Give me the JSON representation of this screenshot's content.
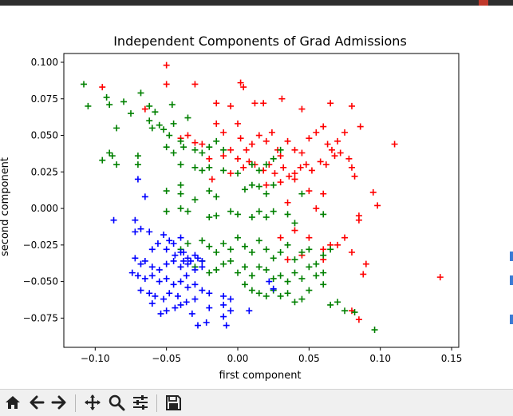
{
  "app": {
    "toolbar": {
      "items": [
        {
          "name": "home-button",
          "icon": "home-icon"
        },
        {
          "name": "back-button",
          "icon": "arrow-left-icon"
        },
        {
          "name": "forward-button",
          "icon": "arrow-right-icon"
        },
        {
          "name": "pan-button",
          "icon": "move-icon"
        },
        {
          "name": "zoom-button",
          "icon": "magnifier-icon"
        },
        {
          "name": "subplots-button",
          "icon": "sliders-icon"
        },
        {
          "name": "save-button",
          "icon": "floppy-disk-icon"
        }
      ]
    }
  },
  "chart_data": {
    "type": "scatter",
    "title": "Independent Components of Grad Admissions",
    "xlabel": "first component",
    "ylabel": "second component",
    "xlim": [
      -0.122,
      0.155
    ],
    "ylim": [
      -0.095,
      0.106
    ],
    "xticks": [
      -0.1,
      -0.05,
      0.0,
      0.05,
      0.1,
      0.15
    ],
    "xtick_labels": [
      "−0.10",
      "−0.05",
      "0.00",
      "0.05",
      "0.10",
      "0.15"
    ],
    "yticks": [
      -0.075,
      -0.05,
      -0.025,
      0.0,
      0.025,
      0.05,
      0.075,
      0.1
    ],
    "ytick_labels": [
      "−0.075",
      "−0.050",
      "−0.025",
      "0.000",
      "0.025",
      "0.050",
      "0.075",
      "0.100"
    ],
    "grid": false,
    "marker": "+",
    "series": [
      {
        "color": "#ff0000",
        "points": [
          [
            -0.05,
            0.098
          ],
          [
            -0.095,
            0.083
          ],
          [
            -0.05,
            0.085
          ],
          [
            -0.03,
            0.085
          ],
          [
            0.002,
            0.086
          ],
          [
            0.004,
            0.083
          ],
          [
            -0.065,
            0.068
          ],
          [
            -0.015,
            0.072
          ],
          [
            -0.005,
            0.07
          ],
          [
            0.012,
            0.072
          ],
          [
            0.018,
            0.072
          ],
          [
            0.031,
            0.075
          ],
          [
            0.045,
            0.068
          ],
          [
            0.065,
            0.072
          ],
          [
            0.08,
            0.07
          ],
          [
            0.086,
            0.056
          ],
          [
            0.11,
            0.044
          ],
          [
            0.095,
            0.011
          ],
          [
            0.098,
            0.002
          ],
          [
            0.085,
            -0.005
          ],
          [
            0.085,
            -0.008
          ],
          [
            0.075,
            -0.02
          ],
          [
            0.065,
            -0.025
          ],
          [
            0.06,
            -0.028
          ],
          [
            0.05,
            -0.02
          ],
          [
            0.04,
            -0.015
          ],
          [
            0.03,
            -0.02
          ],
          [
            0.045,
            -0.032
          ],
          [
            0.035,
            -0.035
          ],
          [
            0.06,
            -0.035
          ],
          [
            0.07,
            -0.025
          ],
          [
            0.08,
            -0.03
          ],
          [
            0.09,
            -0.038
          ],
          [
            0.088,
            -0.045
          ],
          [
            0.142,
            -0.047
          ],
          [
            0.08,
            -0.07
          ],
          [
            0.085,
            -0.076
          ],
          [
            -0.035,
            0.05
          ],
          [
            -0.03,
            0.045
          ],
          [
            -0.015,
            0.058
          ],
          [
            -0.01,
            0.052
          ],
          [
            0.0,
            0.058
          ],
          [
            0.002,
            0.048
          ],
          [
            0.006,
            0.04
          ],
          [
            0.01,
            0.044
          ],
          [
            0.015,
            0.05
          ],
          [
            0.02,
            0.046
          ],
          [
            0.024,
            0.052
          ],
          [
            0.028,
            0.04
          ],
          [
            0.03,
            0.036
          ],
          [
            0.035,
            0.046
          ],
          [
            0.04,
            0.04
          ],
          [
            0.045,
            0.038
          ],
          [
            0.05,
            0.048
          ],
          [
            0.055,
            0.052
          ],
          [
            0.06,
            0.056
          ],
          [
            0.063,
            0.044
          ],
          [
            0.066,
            0.04
          ],
          [
            0.07,
            0.046
          ],
          [
            0.072,
            0.038
          ],
          [
            0.075,
            0.052
          ],
          [
            0.078,
            0.034
          ],
          [
            0.08,
            0.028
          ],
          [
            0.082,
            0.022
          ],
          [
            -0.01,
            0.036
          ],
          [
            -0.005,
            0.04
          ],
          [
            0.0,
            0.034
          ],
          [
            0.004,
            0.028
          ],
          [
            0.008,
            0.032
          ],
          [
            0.012,
            0.03
          ],
          [
            0.018,
            0.026
          ],
          [
            0.022,
            0.03
          ],
          [
            0.026,
            0.024
          ],
          [
            0.032,
            0.028
          ],
          [
            0.036,
            0.022
          ],
          [
            0.04,
            0.024
          ],
          [
            0.044,
            0.028
          ],
          [
            0.048,
            0.03
          ],
          [
            0.052,
            0.026
          ],
          [
            0.058,
            0.032
          ],
          [
            0.062,
            0.03
          ],
          [
            0.068,
            0.036
          ],
          [
            -0.02,
            0.034
          ],
          [
            -0.025,
            0.044
          ],
          [
            -0.04,
            0.048
          ],
          [
            -0.018,
            0.02
          ],
          [
            -0.005,
            0.024
          ],
          [
            0.02,
            0.016
          ],
          [
            0.03,
            0.018
          ],
          [
            0.04,
            0.02
          ],
          [
            0.05,
            0.012
          ],
          [
            0.06,
            0.01
          ],
          [
            0.035,
            0.004
          ],
          [
            0.055,
            0.0
          ]
        ]
      },
      {
        "color": "#008000",
        "points": [
          [
            -0.108,
            0.085
          ],
          [
            -0.105,
            0.07
          ],
          [
            -0.092,
            0.076
          ],
          [
            -0.09,
            0.071
          ],
          [
            -0.08,
            0.073
          ],
          [
            -0.068,
            0.079
          ],
          [
            -0.075,
            0.065
          ],
          [
            -0.062,
            0.07
          ],
          [
            -0.058,
            0.066
          ],
          [
            -0.046,
            0.071
          ],
          [
            -0.085,
            0.055
          ],
          [
            -0.062,
            0.06
          ],
          [
            -0.06,
            0.055
          ],
          [
            -0.055,
            0.057
          ],
          [
            -0.052,
            0.054
          ],
          [
            -0.048,
            0.05
          ],
          [
            -0.045,
            0.058
          ],
          [
            -0.04,
            0.046
          ],
          [
            -0.035,
            0.062
          ],
          [
            -0.05,
            0.042
          ],
          [
            -0.045,
            0.038
          ],
          [
            -0.038,
            0.042
          ],
          [
            -0.03,
            0.04
          ],
          [
            -0.025,
            0.038
          ],
          [
            -0.02,
            0.042
          ],
          [
            -0.015,
            0.046
          ],
          [
            -0.01,
            0.04
          ],
          [
            -0.09,
            0.038
          ],
          [
            -0.088,
            0.036
          ],
          [
            -0.095,
            0.033
          ],
          [
            -0.085,
            0.03
          ],
          [
            -0.07,
            0.036
          ],
          [
            -0.07,
            0.03
          ],
          [
            -0.04,
            0.03
          ],
          [
            -0.03,
            0.028
          ],
          [
            -0.025,
            0.026
          ],
          [
            -0.02,
            0.028
          ],
          [
            -0.01,
            0.026
          ],
          [
            0.0,
            0.024
          ],
          [
            0.01,
            0.03
          ],
          [
            0.015,
            0.026
          ],
          [
            0.02,
            0.03
          ],
          [
            0.025,
            0.034
          ],
          [
            0.03,
            0.04
          ],
          [
            -0.05,
            0.012
          ],
          [
            -0.04,
            0.016
          ],
          [
            -0.02,
            0.012
          ],
          [
            -0.015,
            0.008
          ],
          [
            0.005,
            0.013
          ],
          [
            0.01,
            0.016
          ],
          [
            0.015,
            0.015
          ],
          [
            0.02,
            0.01
          ],
          [
            0.025,
            0.016
          ],
          [
            -0.05,
            -0.002
          ],
          [
            -0.04,
            0.0
          ],
          [
            -0.035,
            -0.002
          ],
          [
            -0.02,
            -0.006
          ],
          [
            -0.015,
            -0.005
          ],
          [
            -0.005,
            -0.002
          ],
          [
            0.0,
            -0.004
          ],
          [
            0.01,
            -0.006
          ],
          [
            0.015,
            -0.002
          ],
          [
            0.02,
            -0.006
          ],
          [
            0.025,
            -0.002
          ],
          [
            0.035,
            -0.004
          ],
          [
            -0.04,
            -0.028
          ],
          [
            -0.035,
            -0.024
          ],
          [
            -0.025,
            -0.022
          ],
          [
            -0.02,
            -0.026
          ],
          [
            -0.015,
            -0.03
          ],
          [
            -0.01,
            -0.024
          ],
          [
            -0.005,
            -0.028
          ],
          [
            0.0,
            -0.02
          ],
          [
            0.005,
            -0.026
          ],
          [
            0.01,
            -0.03
          ],
          [
            0.015,
            -0.022
          ],
          [
            0.02,
            -0.028
          ],
          [
            0.025,
            -0.034
          ],
          [
            0.03,
            -0.03
          ],
          [
            0.035,
            -0.025
          ],
          [
            0.04,
            -0.035
          ],
          [
            0.045,
            -0.03
          ],
          [
            0.05,
            -0.028
          ],
          [
            0.055,
            -0.038
          ],
          [
            0.06,
            -0.032
          ],
          [
            0.065,
            -0.028
          ],
          [
            -0.03,
            -0.04
          ],
          [
            -0.025,
            -0.036
          ],
          [
            -0.02,
            -0.044
          ],
          [
            -0.015,
            -0.042
          ],
          [
            -0.01,
            -0.038
          ],
          [
            -0.005,
            -0.036
          ],
          [
            0.0,
            -0.044
          ],
          [
            0.005,
            -0.04
          ],
          [
            0.01,
            -0.046
          ],
          [
            0.015,
            -0.04
          ],
          [
            0.02,
            -0.042
          ],
          [
            0.025,
            -0.048
          ],
          [
            0.03,
            -0.046
          ],
          [
            0.035,
            -0.05
          ],
          [
            0.04,
            -0.044
          ],
          [
            0.045,
            -0.048
          ],
          [
            0.05,
            -0.04
          ],
          [
            0.055,
            -0.046
          ],
          [
            0.06,
            -0.044
          ],
          [
            0.005,
            -0.052
          ],
          [
            0.01,
            -0.056
          ],
          [
            0.015,
            -0.058
          ],
          [
            0.02,
            -0.06
          ],
          [
            0.025,
            -0.056
          ],
          [
            0.03,
            -0.06
          ],
          [
            0.035,
            -0.058
          ],
          [
            0.04,
            -0.064
          ],
          [
            0.045,
            -0.062
          ],
          [
            0.05,
            -0.056
          ],
          [
            0.06,
            -0.052
          ],
          [
            0.065,
            -0.066
          ],
          [
            0.07,
            -0.064
          ],
          [
            0.075,
            -0.07
          ],
          [
            0.082,
            -0.071
          ],
          [
            0.096,
            -0.083
          ],
          [
            -0.04,
            0.01
          ],
          [
            -0.03,
            0.006
          ],
          [
            0.045,
            0.01
          ],
          [
            0.04,
            -0.01
          ],
          [
            0.06,
            -0.004
          ]
        ]
      },
      {
        "color": "#0000ff",
        "points": [
          [
            -0.07,
            0.02
          ],
          [
            -0.065,
            0.008
          ],
          [
            -0.087,
            -0.008
          ],
          [
            -0.072,
            -0.008
          ],
          [
            -0.068,
            -0.014
          ],
          [
            -0.072,
            -0.016
          ],
          [
            -0.062,
            -0.016
          ],
          [
            -0.052,
            -0.018
          ],
          [
            -0.048,
            -0.022
          ],
          [
            -0.045,
            -0.024
          ],
          [
            -0.04,
            -0.02
          ],
          [
            -0.056,
            -0.024
          ],
          [
            -0.06,
            -0.028
          ],
          [
            -0.05,
            -0.028
          ],
          [
            -0.044,
            -0.032
          ],
          [
            -0.038,
            -0.03
          ],
          [
            -0.035,
            -0.034
          ],
          [
            -0.03,
            -0.032
          ],
          [
            -0.025,
            -0.036
          ],
          [
            -0.072,
            -0.034
          ],
          [
            -0.068,
            -0.038
          ],
          [
            -0.065,
            -0.036
          ],
          [
            -0.06,
            -0.04
          ],
          [
            -0.055,
            -0.042
          ],
          [
            -0.05,
            -0.038
          ],
          [
            -0.045,
            -0.036
          ],
          [
            -0.04,
            -0.04
          ],
          [
            -0.035,
            -0.038
          ],
          [
            -0.03,
            -0.042
          ],
          [
            -0.025,
            -0.04
          ],
          [
            -0.074,
            -0.044
          ],
          [
            -0.07,
            -0.046
          ],
          [
            -0.065,
            -0.048
          ],
          [
            -0.06,
            -0.046
          ],
          [
            -0.055,
            -0.05
          ],
          [
            -0.05,
            -0.048
          ],
          [
            -0.045,
            -0.052
          ],
          [
            -0.04,
            -0.05
          ],
          [
            -0.035,
            -0.054
          ],
          [
            -0.03,
            -0.052
          ],
          [
            -0.025,
            -0.056
          ],
          [
            -0.068,
            -0.056
          ],
          [
            -0.062,
            -0.058
          ],
          [
            -0.058,
            -0.06
          ],
          [
            -0.052,
            -0.062
          ],
          [
            -0.048,
            -0.058
          ],
          [
            -0.042,
            -0.06
          ],
          [
            -0.036,
            -0.064
          ],
          [
            -0.03,
            -0.062
          ],
          [
            -0.02,
            -0.058
          ],
          [
            -0.01,
            -0.06
          ],
          [
            -0.005,
            -0.062
          ],
          [
            -0.06,
            -0.065
          ],
          [
            -0.05,
            -0.07
          ],
          [
            -0.04,
            -0.066
          ],
          [
            -0.032,
            -0.072
          ],
          [
            -0.02,
            -0.068
          ],
          [
            -0.01,
            -0.066
          ],
          [
            -0.005,
            -0.07
          ],
          [
            -0.054,
            -0.072
          ],
          [
            -0.044,
            -0.068
          ],
          [
            -0.028,
            -0.08
          ],
          [
            -0.022,
            -0.078
          ],
          [
            -0.01,
            -0.074
          ],
          [
            -0.008,
            -0.08
          ],
          [
            0.008,
            -0.07
          ],
          [
            -0.04,
            -0.03
          ],
          [
            -0.038,
            -0.036
          ],
          [
            -0.033,
            -0.036
          ],
          [
            -0.028,
            -0.034
          ],
          [
            -0.036,
            -0.046
          ],
          [
            0.025,
            -0.055
          ],
          [
            0.022,
            -0.05
          ]
        ]
      }
    ]
  }
}
